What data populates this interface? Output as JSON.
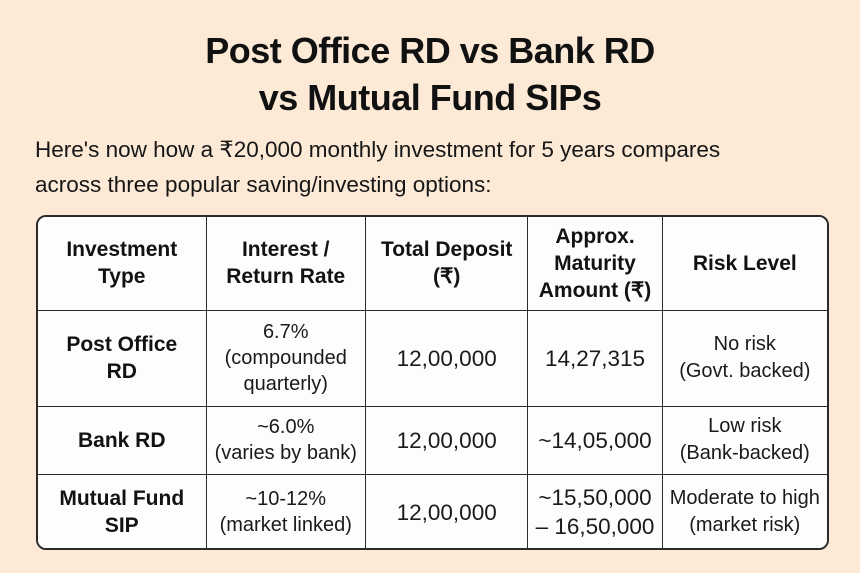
{
  "page": {
    "background_color": "#fcead7",
    "title": "Post Office RD vs Bank RD\nvs Mutual Fund SIPs",
    "subtitle": "Here's now how a ₹20,000 monthly investment for 5 years compares\nacross three popular saving/investing options:"
  },
  "table": {
    "headers": [
      "Investment\nType",
      "Interest /\nReturn Rate",
      "Total Deposit\n(₹)",
      "Approx.\nMaturity\nAmount (₹)",
      "Risk Level"
    ],
    "rows": [
      {
        "cells": [
          "Post Office\nRD",
          "6.7%\n(compounded\nquarterly)",
          "12,00,000",
          "14,27,315",
          "No risk\n(Govt. backed)"
        ]
      },
      {
        "cells": [
          "Bank RD",
          "~6.0%\n(varies by bank)",
          "12,00,000",
          "~14,05,000",
          "Low risk\n(Bank-backed)"
        ]
      },
      {
        "cells": [
          "Mutual Fund\nSIP",
          "~10-12%\n(market linked)",
          "12,00,000",
          "~15,50,000\n– 16,50,000",
          "Moderate to high\n(market risk)"
        ]
      }
    ]
  }
}
